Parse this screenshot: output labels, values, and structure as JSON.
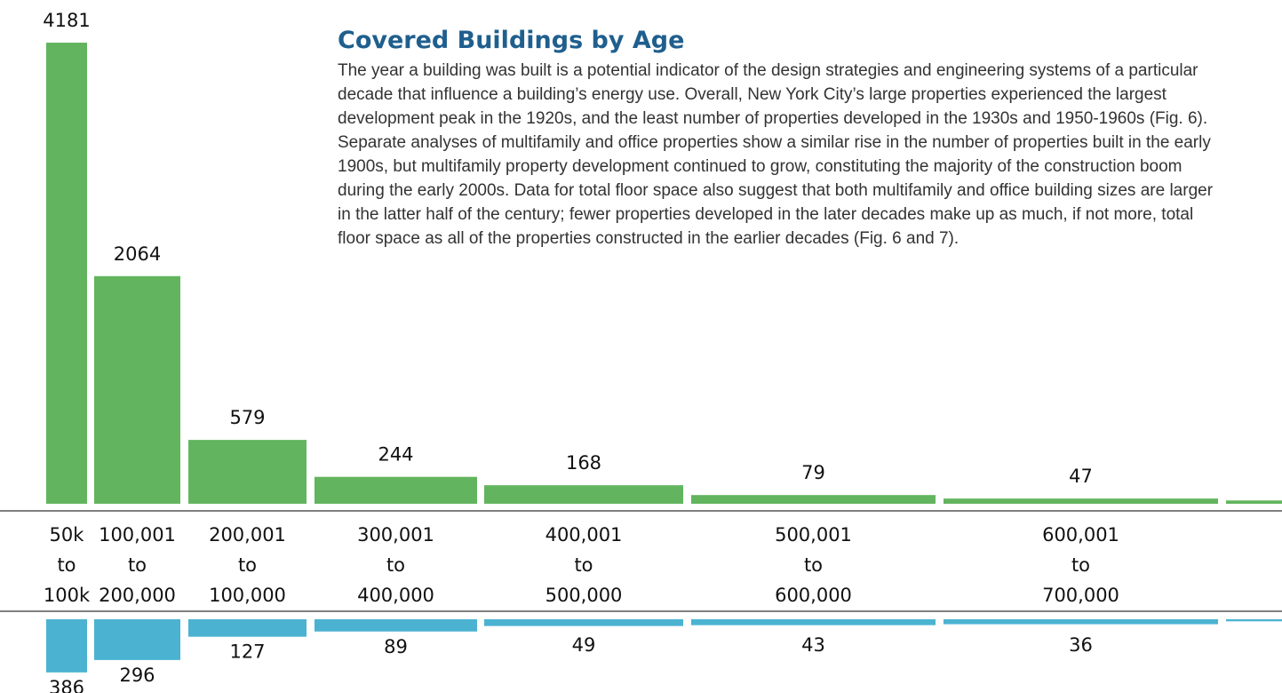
{
  "chart_data": {
    "type": "bar",
    "title": "Covered Buildings by Age",
    "description": "The year a building was built is a potential indicator of the design strategies and engineering systems of a particular decade that influence a building’s energy use. Overall, New York City’s large properties experienced the largest development peak in the 1920s, and the least number of properties developed in the 1930s and 1950-1960s (Fig. 6). Separate analyses of multifamily and office properties show a similar rise in the number of properties built in the early 1900s, but multifamily property development continued to grow, constituting the majority of the construction boom during the early 2000s. Data for total floor space also suggest that both multifamily and office building sizes are larger in the latter half of the century; fewer properties developed in the later decades make up as much, if not more, total floor space as all of the properties constructed in the earlier decades (Fig. 6 and 7).",
    "categories": [
      [
        "50k",
        "to",
        "100k"
      ],
      [
        "100,001",
        "to",
        "200,000"
      ],
      [
        "200,001",
        "to",
        "100,000"
      ],
      [
        "300,001",
        "to",
        "400,000"
      ],
      [
        "400,001",
        "to",
        "500,000"
      ],
      [
        "500,001",
        "to",
        "600,000"
      ],
      [
        "600,001",
        "to",
        "700,000"
      ],
      null
    ],
    "series": [
      {
        "color": "#62b55e",
        "values": [
          4181,
          2064,
          579,
          244,
          168,
          79,
          47,
          30
        ]
      },
      {
        "color": "#4bb3d1",
        "values": [
          386,
          296,
          127,
          89,
          49,
          43,
          36,
          15
        ]
      }
    ]
  }
}
